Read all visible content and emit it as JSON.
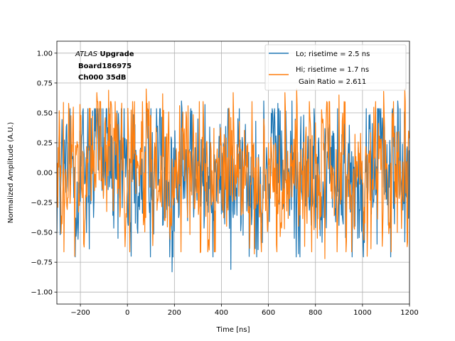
{
  "chart_data": {
    "type": "line",
    "xlabel": "Time [ns]",
    "ylabel": "Normalized Amplitude (A.U.)",
    "xlim": [
      -300,
      1200
    ],
    "ylim": [
      -1.1,
      1.1
    ],
    "xticks": [
      -200,
      0,
      200,
      400,
      600,
      800,
      1000,
      1200
    ],
    "yticks": [
      -1.0,
      -0.75,
      -0.5,
      -0.25,
      0.0,
      0.25,
      0.5,
      0.75,
      1.0
    ],
    "xtick_labels": [
      "−200",
      "0",
      "200",
      "400",
      "600",
      "800",
      "1000",
      "1200"
    ],
    "ytick_labels": [
      "−1.00",
      "−0.75",
      "−0.50",
      "−0.25",
      "0.00",
      "0.25",
      "0.50",
      "0.75",
      "1.00"
    ],
    "grid": true,
    "legend_position": "top-right",
    "annotation": {
      "line1_italic": "ATLAS",
      "line1_bold": " Upgrade",
      "line2": "Board186975",
      "line3": "Ch000 35dB"
    },
    "series": [
      {
        "name": "Lo; risetime = 2.5 ns",
        "color": "#1f77b4",
        "x_start": -300,
        "x_end": 1200,
        "x_step": 2,
        "amplitude_range": [
          -0.83,
          0.63
        ],
        "points": [
          [
            -160,
            0.45
          ],
          [
            -80,
            0.55
          ],
          [
            -40,
            -0.55
          ],
          [
            190,
            -0.83
          ],
          [
            230,
            0.6
          ],
          [
            330,
            0.57
          ],
          [
            440,
            -0.81
          ],
          [
            580,
            0.6
          ],
          [
            640,
            0.58
          ],
          [
            700,
            0.6
          ],
          [
            980,
            -0.55
          ],
          [
            1150,
            0.6
          ],
          [
            1180,
            -0.58
          ]
        ]
      },
      {
        "name": "Hi; risetime = 1.7 ns",
        "extra_label": "Gain Ratio = 2.611",
        "color": "#ff7f0e",
        "x_start": -300,
        "x_end": 1200,
        "x_step": 2,
        "amplitude_range": [
          -0.78,
          0.7
        ],
        "points": [
          [
            -250,
            0.58
          ],
          [
            -225,
            -0.7
          ],
          [
            -130,
            0.67
          ],
          [
            -80,
            0.69
          ],
          [
            -10,
            -0.62
          ],
          [
            80,
            0.7
          ],
          [
            150,
            0.66
          ],
          [
            310,
            -0.67
          ],
          [
            450,
            0.67
          ],
          [
            540,
            -0.68
          ],
          [
            670,
            0.67
          ],
          [
            720,
            0.7
          ],
          [
            840,
            -0.72
          ],
          [
            900,
            0.65
          ],
          [
            1020,
            -0.7
          ],
          [
            1090,
            0.68
          ],
          [
            1180,
            0.7
          ],
          [
            1190,
            -0.62
          ]
        ]
      }
    ]
  }
}
